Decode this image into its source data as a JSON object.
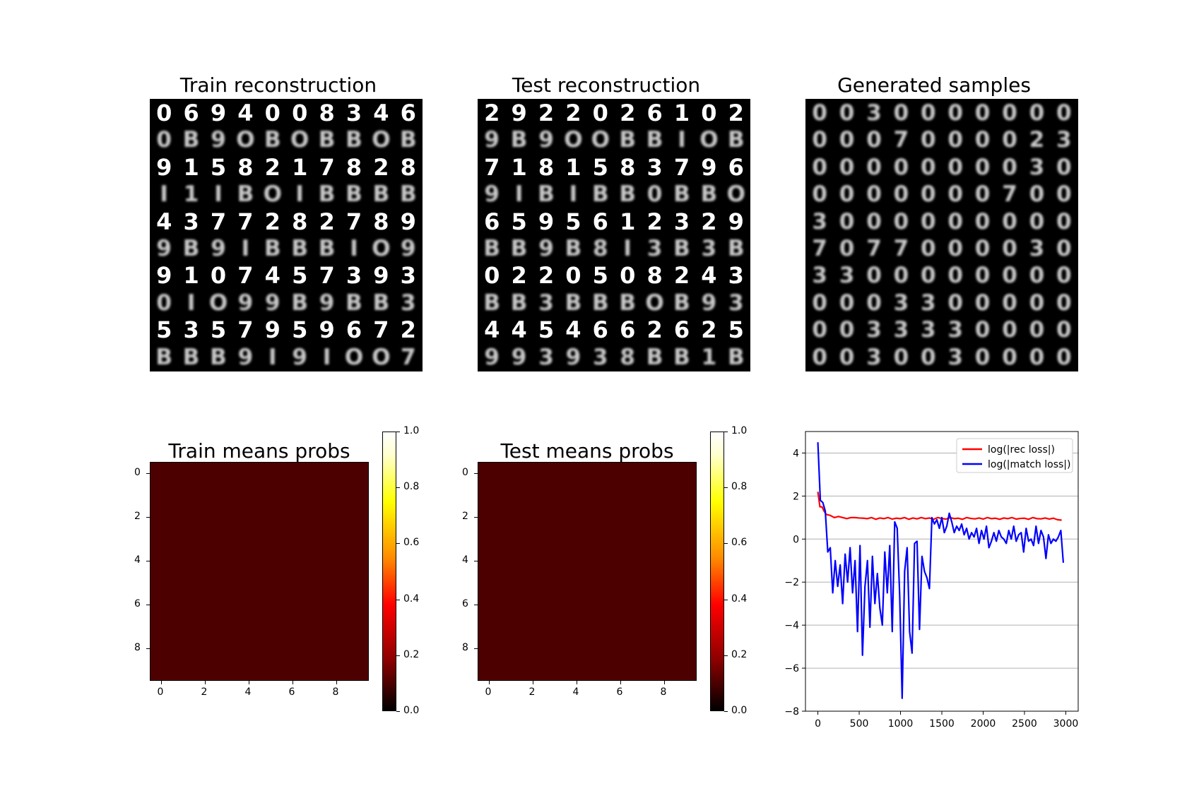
{
  "panels": {
    "train_reconstruction": {
      "title": "Train reconstruction",
      "digit_rows": [
        "0694008346",
        "0B9OBOBBOB",
        "9158217828",
        "I1IBOIBBBB",
        "4377282789",
        "9B9IBBBIO9",
        "9107457393",
        "0IO99B9BB3",
        "5357959672",
        "BBB9I9IOO7"
      ]
    },
    "test_reconstruction": {
      "title": "Test reconstruction",
      "digit_rows": [
        "2922026102",
        "9B9OOBBIOB",
        "7181583796",
        "9IBIBB0BBO",
        "6595612329",
        "BB9B8I3B3B",
        "0220508243",
        "BB3BBBOB93",
        "4454662625",
        "993938BB1B"
      ]
    },
    "generated_samples": {
      "title": "Generated samples",
      "digit_rows": [
        "0030000000",
        "0007000023",
        "0000000030",
        "0000000700",
        "3000000000",
        "7077000030",
        "3300000000",
        "0003300000",
        "0033330000",
        "0030030000"
      ]
    }
  },
  "chart_data": [
    {
      "type": "heatmap",
      "title": "Train means probs",
      "x_ticks": [
        0,
        2,
        4,
        6,
        8
      ],
      "y_ticks": [
        0,
        2,
        4,
        6,
        8
      ],
      "value": 0.15,
      "color": "#4d0000",
      "colorbar": {
        "ticks": [
          "0.0",
          "0.2",
          "0.4",
          "0.6",
          "0.8",
          "1.0"
        ],
        "range": [
          0.0,
          1.0
        ]
      }
    },
    {
      "type": "heatmap",
      "title": "Test means probs",
      "x_ticks": [
        0,
        2,
        4,
        6,
        8
      ],
      "y_ticks": [
        0,
        2,
        4,
        6,
        8
      ],
      "value": 0.15,
      "color": "#4d0000",
      "colorbar": {
        "ticks": [
          "0.0",
          "0.2",
          "0.4",
          "0.6",
          "0.8",
          "1.0"
        ],
        "range": [
          0.0,
          1.0
        ]
      }
    },
    {
      "type": "line",
      "title": "",
      "xlim": [
        -150,
        3150
      ],
      "ylim": [
        -8,
        5
      ],
      "x_ticks": [
        0,
        500,
        1000,
        1500,
        2000,
        2500,
        3000
      ],
      "y_ticks": [
        -8,
        -6,
        -4,
        -2,
        0,
        2,
        4
      ],
      "grid": "horizontal",
      "legend": "top-right",
      "series": [
        {
          "name": "log(|rec loss|)",
          "color": "#ff0000",
          "x": [
            0,
            25,
            50,
            75,
            100,
            150,
            200,
            250,
            300,
            350,
            400,
            450,
            500,
            550,
            600,
            650,
            700,
            750,
            800,
            850,
            900,
            950,
            1000,
            1050,
            1100,
            1150,
            1200,
            1250,
            1300,
            1350,
            1400,
            1450,
            1500,
            1550,
            1600,
            1650,
            1700,
            1750,
            1800,
            1850,
            1900,
            1950,
            2000,
            2050,
            2100,
            2150,
            2200,
            2250,
            2300,
            2350,
            2400,
            2450,
            2500,
            2550,
            2600,
            2650,
            2700,
            2750,
            2800,
            2850,
            2900,
            2950
          ],
          "y": [
            2.2,
            1.5,
            1.5,
            1.3,
            1.15,
            1.1,
            1.0,
            1.05,
            1.0,
            0.95,
            1.0,
            1.0,
            0.98,
            0.97,
            0.95,
            1.0,
            0.92,
            0.98,
            0.95,
            1.0,
            0.93,
            0.97,
            0.95,
            1.0,
            0.92,
            0.98,
            0.94,
            1.0,
            0.95,
            0.98,
            0.92,
            1.0,
            0.96,
            0.93,
            1.0,
            0.95,
            0.97,
            0.92,
            1.0,
            0.96,
            0.94,
            0.98,
            0.93,
            1.0,
            0.95,
            0.97,
            0.92,
            0.98,
            0.95,
            1.0,
            0.93,
            0.96,
            0.97,
            0.92,
            1.0,
            0.95,
            0.94,
            0.98,
            0.93,
            0.97,
            0.9,
            0.88
          ]
        },
        {
          "name": "log(|match loss|)",
          "color": "#0000ff",
          "x": [
            0,
            30,
            60,
            90,
            120,
            150,
            180,
            210,
            240,
            270,
            300,
            330,
            360,
            390,
            420,
            450,
            480,
            510,
            540,
            570,
            600,
            630,
            660,
            690,
            720,
            750,
            780,
            810,
            840,
            870,
            900,
            930,
            960,
            990,
            1020,
            1050,
            1080,
            1110,
            1140,
            1170,
            1200,
            1230,
            1260,
            1290,
            1320,
            1350,
            1380,
            1410,
            1440,
            1470,
            1500,
            1530,
            1560,
            1590,
            1620,
            1650,
            1680,
            1710,
            1740,
            1770,
            1800,
            1830,
            1860,
            1890,
            1920,
            1950,
            1980,
            2010,
            2040,
            2070,
            2100,
            2130,
            2160,
            2190,
            2220,
            2250,
            2280,
            2310,
            2340,
            2370,
            2400,
            2430,
            2460,
            2490,
            2520,
            2550,
            2580,
            2610,
            2640,
            2670,
            2700,
            2730,
            2760,
            2790,
            2820,
            2850,
            2880,
            2910,
            2940,
            2970
          ],
          "y": [
            4.5,
            1.8,
            1.7,
            1.3,
            -0.6,
            -0.4,
            -2.5,
            -1.0,
            -2.2,
            -1.2,
            -3.0,
            -0.7,
            -2.0,
            -0.4,
            -2.5,
            -1.0,
            -4.3,
            -0.3,
            -5.4,
            -2.2,
            -1.0,
            -4.1,
            -0.8,
            -3.0,
            -1.6,
            -3.2,
            -4.0,
            -0.6,
            -2.5,
            -0.3,
            -4.3,
            0.8,
            0.5,
            -2.6,
            -7.4,
            -1.5,
            -0.4,
            -4.3,
            -5.3,
            -0.2,
            -0.1,
            -4.2,
            -0.8,
            -1.5,
            -1.8,
            -2.3,
            1.0,
            0.7,
            0.9,
            0.5,
            1.0,
            0.3,
            0.6,
            1.2,
            0.8,
            0.3,
            0.6,
            0.4,
            0.7,
            0.2,
            0.5,
            0.0,
            0.3,
            0.1,
            0.5,
            -0.2,
            0.4,
            0.0,
            0.6,
            -0.4,
            -0.1,
            0.3,
            -0.1,
            0.4,
            0.1,
            0.0,
            -0.2,
            0.4,
            0.0,
            0.6,
            -0.1,
            0.2,
            0.3,
            -0.6,
            0.5,
            -0.1,
            0.0,
            -0.3,
            0.6,
            -0.2,
            0.4,
            0.1,
            -0.9,
            0.2,
            -0.2,
            0.0,
            -0.1,
            0.1,
            0.4,
            -1.1
          ]
        }
      ]
    }
  ]
}
